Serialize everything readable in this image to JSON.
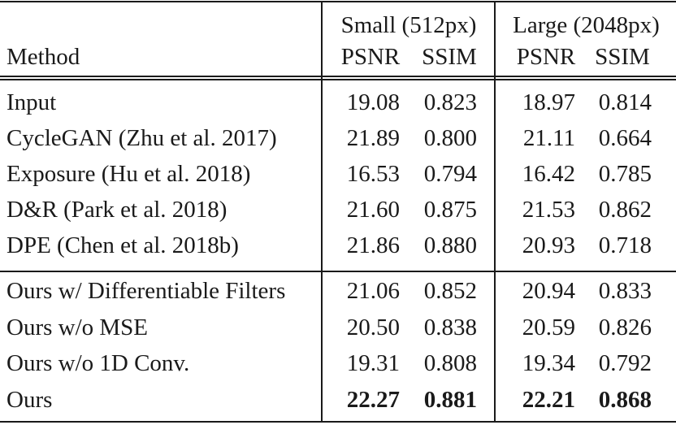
{
  "header": {
    "method_label": "Method",
    "groups": [
      {
        "label": "Small (512px)",
        "metrics": [
          "PSNR",
          "SSIM"
        ]
      },
      {
        "label": "Large (2048px)",
        "metrics": [
          "PSNR",
          "SSIM"
        ]
      }
    ]
  },
  "sections": [
    {
      "rows": [
        {
          "method": "Input",
          "small_psnr": "19.08",
          "small_ssim": "0.823",
          "large_psnr": "18.97",
          "large_ssim": "0.814",
          "bold": false
        },
        {
          "method": "CycleGAN (Zhu et al. 2017)",
          "small_psnr": "21.89",
          "small_ssim": "0.800",
          "large_psnr": "21.11",
          "large_ssim": "0.664",
          "bold": false
        },
        {
          "method": "Exposure (Hu et al. 2018)",
          "small_psnr": "16.53",
          "small_ssim": "0.794",
          "large_psnr": "16.42",
          "large_ssim": "0.785",
          "bold": false
        },
        {
          "method": "D&R (Park et al. 2018)",
          "small_psnr": "21.60",
          "small_ssim": "0.875",
          "large_psnr": "21.53",
          "large_ssim": "0.862",
          "bold": false
        },
        {
          "method": "DPE (Chen et al. 2018b)",
          "small_psnr": "21.86",
          "small_ssim": "0.880",
          "large_psnr": "20.93",
          "large_ssim": "0.718",
          "bold": false
        }
      ]
    },
    {
      "rows": [
        {
          "method": "Ours w/ Differentiable Filters",
          "small_psnr": "21.06",
          "small_ssim": "0.852",
          "large_psnr": "20.94",
          "large_ssim": "0.833",
          "bold": false
        },
        {
          "method": "Ours w/o MSE",
          "small_psnr": "20.50",
          "small_ssim": "0.838",
          "large_psnr": "20.59",
          "large_ssim": "0.826",
          "bold": false
        },
        {
          "method": "Ours w/o 1D Conv.",
          "small_psnr": "19.31",
          "small_ssim": "0.808",
          "large_psnr": "19.34",
          "large_ssim": "0.792",
          "bold": false
        },
        {
          "method": "Ours",
          "small_psnr": "22.27",
          "small_ssim": "0.881",
          "large_psnr": "22.21",
          "large_ssim": "0.868",
          "bold": true
        }
      ]
    }
  ]
}
